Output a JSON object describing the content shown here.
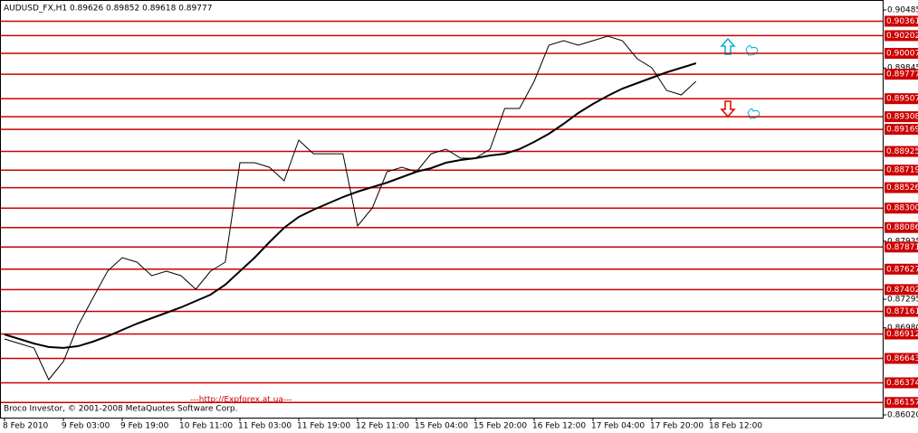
{
  "chart_data": {
    "type": "line",
    "title": "AUDUSD_FX,H1  0.89626 0.89852 0.89618 0.89777",
    "footer": "Broco Investor, © 2001-2008 MetaQuotes Software Corp.",
    "annotation": "---http://Expforex.at.ua---",
    "categories": [
      "8 Feb 2010",
      null,
      null,
      null,
      "9 Feb 03:00",
      null,
      null,
      null,
      "9 Feb 19:00",
      null,
      null,
      null,
      "10 Feb 11:00",
      null,
      null,
      null,
      "11 Feb 03:00",
      null,
      null,
      null,
      "11 Feb 19:00",
      null,
      null,
      null,
      "12 Feb 11:00",
      null,
      null,
      null,
      "15 Feb 04:00",
      null,
      null,
      null,
      "15 Feb 20:00",
      null,
      null,
      null,
      "16 Feb 12:00",
      null,
      null,
      null,
      "17 Feb 04:00",
      null,
      null,
      null,
      "17 Feb 20:00",
      null,
      null,
      null,
      "18 Feb 12:00",
      null,
      null,
      null
    ],
    "series": [
      {
        "name": "Price",
        "color": "#000000",
        "values": [
          0.86857,
          0.86807,
          0.86758,
          0.86409,
          0.86608,
          0.87007,
          0.87306,
          0.87605,
          0.87754,
          0.87704,
          0.87555,
          0.87605,
          0.87555,
          0.87405,
          0.87605,
          0.87704,
          0.88801,
          0.88801,
          0.88751,
          0.88601,
          0.8905,
          0.889,
          0.889,
          0.889,
          0.88103,
          0.88302,
          0.88701,
          0.88751,
          0.88701,
          0.889,
          0.8895,
          0.88851,
          0.88851,
          0.8895,
          0.89399,
          0.89399,
          0.89698,
          0.90097,
          0.90146,
          0.90097,
          0.90146,
          0.90196,
          0.90146,
          0.89947,
          0.89847,
          0.89598,
          0.89548,
          0.89698,
          null,
          null,
          null,
          null
        ]
      },
      {
        "name": "MA",
        "color": "#000000",
        "values": [
          0.86907,
          0.86857,
          0.86807,
          0.86768,
          0.86758,
          0.86778,
          0.86827,
          0.86887,
          0.86957,
          0.87027,
          0.87086,
          0.87146,
          0.87206,
          0.87276,
          0.87346,
          0.87455,
          0.87605,
          0.87754,
          0.87924,
          0.88083,
          0.88203,
          0.88283,
          0.88352,
          0.88422,
          0.88482,
          0.88532,
          0.88582,
          0.88641,
          0.88701,
          0.88741,
          0.88801,
          0.88831,
          0.88851,
          0.88881,
          0.889,
          0.8895,
          0.8903,
          0.8912,
          0.89229,
          0.89349,
          0.89449,
          0.89538,
          0.89618,
          0.89678,
          0.89738,
          0.89798,
          0.89847,
          0.89897,
          null,
          null,
          null,
          null
        ]
      }
    ],
    "ylim": [
      0.8599,
      0.90595
    ],
    "yticks": [
      0.90485,
      0.89845,
      0.87935,
      0.87295,
      {
        "value": 0.8698,
        "label": "0.86980"
      },
      {
        "value": 0.8602,
        "label": "0.86020"
      }
    ],
    "levels": [
      0.90361,
      0.90202,
      0.90007,
      0.89777,
      0.89507,
      0.89308,
      0.89169,
      0.88925,
      0.88719,
      0.88526,
      {
        "value": 0.883,
        "label": "0.88300"
      },
      0.88086,
      0.87871,
      0.87627,
      0.87402,
      0.87161,
      0.86912,
      0.86643,
      0.86374,
      0.86157
    ],
    "level_color": "#cc0000"
  }
}
